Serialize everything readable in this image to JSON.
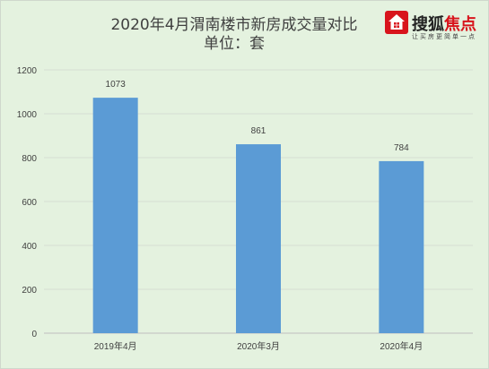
{
  "chart_data": {
    "type": "bar",
    "title": "2020年4月渭南楼市新房成交量对比",
    "subtitle": "单位：套",
    "categories": [
      "2019年4月",
      "2020年3月",
      "2020年4月"
    ],
    "values": [
      1073,
      861,
      784
    ],
    "ylim": [
      0,
      1200
    ],
    "yticks": [
      0,
      200,
      400,
      600,
      800,
      1000,
      1200
    ],
    "grid": true,
    "legend": "none",
    "bar_color": "#5b9bd5"
  },
  "logo": {
    "brand_a": "搜狐",
    "brand_b": "焦点",
    "slogan": "让买房更简单一点",
    "brand_color": "#d8141c"
  }
}
